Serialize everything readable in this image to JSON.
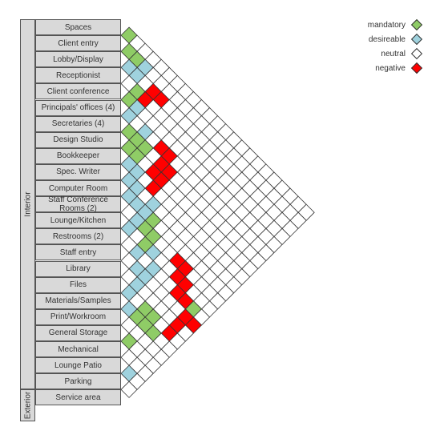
{
  "groups": [
    {
      "label": "Interior",
      "from": 0,
      "to": 22
    },
    {
      "label": "Exterior",
      "from": 23,
      "to": 24
    }
  ],
  "rows": [
    "Spaces",
    "Client entry",
    "Lobby/Display",
    "Receptionist",
    "Client conference",
    "Principals' offices (4)",
    "Secretaries (4)",
    "Design Studio",
    "Bookkeeper",
    "Spec. Writer",
    "Computer Room",
    "Staff Conference Rooms (2)",
    "Lounge/Kitchen",
    "Restrooms (2)",
    "Staff entry",
    "Library",
    "Files",
    "Materials/Samples",
    "Print/Workroom",
    "General Storage",
    "Mechanical",
    "Lounge Patio",
    "Parking",
    "Service area"
  ],
  "legend": [
    {
      "key": "mandatory",
      "label": "mandatory",
      "color": "#8fcc66"
    },
    {
      "key": "desireable",
      "label": "desireable",
      "color": "#9fd2de"
    },
    {
      "key": "neutral",
      "label": "neutral",
      "color": "#ffffff"
    },
    {
      "key": "negative",
      "label": "negative",
      "color": "#ff0000"
    }
  ],
  "colors": {
    "mandatory": "#8fcc66",
    "desireable": "#9fd2de",
    "neutral": "#ffffff",
    "negative": "#ff0000",
    "label_bg": "#d9d9d9"
  },
  "relationships": [
    {
      "a": 0,
      "b": 1,
      "type": "mandatory"
    },
    {
      "a": 1,
      "b": 2,
      "type": "mandatory"
    },
    {
      "a": 1,
      "b": 3,
      "type": "mandatory"
    },
    {
      "a": 1,
      "b": 4,
      "type": "desireable"
    },
    {
      "a": 2,
      "b": 3,
      "type": "desireable"
    },
    {
      "a": 2,
      "b": 4,
      "type": "desireable"
    },
    {
      "a": 3,
      "b": 5,
      "type": "mandatory"
    },
    {
      "a": 3,
      "b": 6,
      "type": "negative"
    },
    {
      "a": 2,
      "b": 6,
      "type": "negative"
    },
    {
      "a": 2,
      "b": 7,
      "type": "negative"
    },
    {
      "a": 4,
      "b": 5,
      "type": "mandatory"
    },
    {
      "a": 4,
      "b": 6,
      "type": "desireable"
    },
    {
      "a": 5,
      "b": 6,
      "type": "desireable"
    },
    {
      "a": 5,
      "b": 8,
      "type": "desireable"
    },
    {
      "a": 5,
      "b": 10,
      "type": "negative"
    },
    {
      "a": 5,
      "b": 11,
      "type": "negative"
    },
    {
      "a": 6,
      "b": 11,
      "type": "negative"
    },
    {
      "a": 6,
      "b": 12,
      "type": "negative"
    },
    {
      "a": 7,
      "b": 11,
      "type": "negative"
    },
    {
      "a": 7,
      "b": 12,
      "type": "negative"
    },
    {
      "a": 8,
      "b": 12,
      "type": "negative"
    },
    {
      "a": 6,
      "b": 7,
      "type": "mandatory"
    },
    {
      "a": 7,
      "b": 8,
      "type": "mandatory"
    },
    {
      "a": 6,
      "b": 8,
      "type": "mandatory"
    },
    {
      "a": 7,
      "b": 9,
      "type": "mandatory"
    },
    {
      "a": 6,
      "b": 9,
      "type": "mandatory"
    },
    {
      "a": 8,
      "b": 9,
      "type": "desireable"
    },
    {
      "a": 8,
      "b": 10,
      "type": "desireable"
    },
    {
      "a": 9,
      "b": 10,
      "type": "desireable"
    },
    {
      "a": 9,
      "b": 11,
      "type": "desireable"
    },
    {
      "a": 10,
      "b": 11,
      "type": "desireable"
    },
    {
      "a": 10,
      "b": 12,
      "type": "desireable"
    },
    {
      "a": 10,
      "b": 13,
      "type": "desireable"
    },
    {
      "a": 10,
      "b": 14,
      "type": "mandatory"
    },
    {
      "a": 11,
      "b": 14,
      "type": "mandatory"
    },
    {
      "a": 11,
      "b": 15,
      "type": "mandatory"
    },
    {
      "a": 12,
      "b": 15,
      "type": "mandatory"
    },
    {
      "a": 12,
      "b": 13,
      "type": "desireable"
    },
    {
      "a": 13,
      "b": 15,
      "type": "desireable"
    },
    {
      "a": 11,
      "b": 13,
      "type": "desireable"
    },
    {
      "a": 9,
      "b": 13,
      "type": "desireable"
    },
    {
      "a": 11,
      "b": 18,
      "type": "negative"
    },
    {
      "a": 11,
      "b": 19,
      "type": "negative"
    },
    {
      "a": 12,
      "b": 19,
      "type": "negative"
    },
    {
      "a": 12,
      "b": 20,
      "type": "negative"
    },
    {
      "a": 13,
      "b": 20,
      "type": "negative"
    },
    {
      "a": 13,
      "b": 21,
      "type": "negative"
    },
    {
      "a": 13,
      "b": 22,
      "type": "mandatory"
    },
    {
      "a": 14,
      "b": 22,
      "type": "negative"
    },
    {
      "a": 14,
      "b": 23,
      "type": "negative"
    },
    {
      "a": 15,
      "b": 22,
      "type": "negative"
    },
    {
      "a": 16,
      "b": 22,
      "type": "negative"
    },
    {
      "a": 17,
      "b": 21,
      "type": "mandatory"
    },
    {
      "a": 17,
      "b": 20,
      "type": "mandatory"
    },
    {
      "a": 14,
      "b": 17,
      "type": "desireable"
    },
    {
      "a": 14,
      "b": 16,
      "type": "desireable"
    },
    {
      "a": 13,
      "b": 17,
      "type": "desireable"
    },
    {
      "a": 17,
      "b": 18,
      "type": "desireable"
    },
    {
      "a": 15,
      "b": 17,
      "type": "desireable"
    },
    {
      "a": 16,
      "b": 19,
      "type": "mandatory"
    },
    {
      "a": 16,
      "b": 17,
      "type": "desireable"
    },
    {
      "a": 17,
      "b": 19,
      "type": "mandatory"
    },
    {
      "a": 21,
      "b": 22,
      "type": "desireable"
    },
    {
      "a": 19,
      "b": 20,
      "type": "mandatory"
    },
    {
      "a": 12,
      "b": 16,
      "type": "desireable"
    },
    {
      "a": 16,
      "b": 20,
      "type": "mandatory"
    }
  ]
}
